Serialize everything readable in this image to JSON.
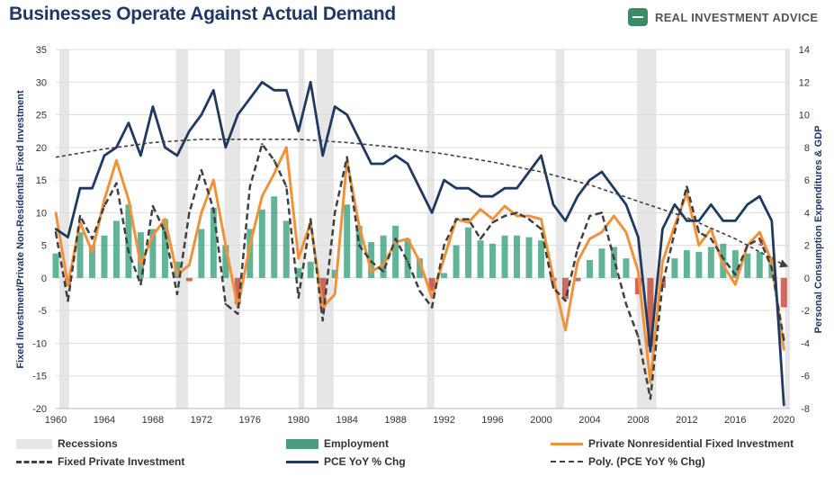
{
  "header": {
    "title": "Businesses Operate Against Actual Demand",
    "brand": "REAL INVESTMENT ADVICE"
  },
  "chart_data": {
    "type": "line",
    "title": "Businesses Operate Against Actual Demand",
    "ylabel_left": "Fixed Investment/Private Non-Residential Fixed Investment",
    "ylabel_right": "Personal Consumption Expenditures & GDP",
    "xlim": [
      1960,
      2020.5
    ],
    "ylim_left": [
      -20,
      35
    ],
    "ylim_right": [
      -8,
      14
    ],
    "x_ticks": [
      1960,
      1964,
      1968,
      1972,
      1976,
      1980,
      1984,
      1988,
      1992,
      1996,
      2000,
      2004,
      2008,
      2012,
      2016,
      2020
    ],
    "y_ticks_left": [
      -20,
      -15,
      -10,
      -5,
      0,
      5,
      10,
      15,
      20,
      25,
      30,
      35
    ],
    "y_ticks_right": [
      -8,
      -6,
      -4,
      -2,
      0,
      2,
      4,
      6,
      8,
      10,
      12,
      14
    ],
    "grid": true,
    "legend_position": "bottom",
    "colors": {
      "recessions": "#e6e6e6",
      "employment_positive": "#2e9a76",
      "employment_negative": "#c0392b",
      "private_nonres_fixed_inv": "#f0923a",
      "fixed_private_inv": "#404040",
      "pce": "#1f3a5f",
      "poly": "#404040"
    },
    "annotation": "3",
    "recessions": [
      [
        1960.3,
        1961.1
      ],
      [
        1969.9,
        1970.9
      ],
      [
        1973.9,
        1975.2
      ],
      [
        1980.0,
        1980.5
      ],
      [
        1981.5,
        1982.9
      ],
      [
        1990.6,
        1991.2
      ],
      [
        2001.2,
        2001.9
      ],
      [
        2007.9,
        2009.5
      ],
      [
        2020.1,
        2020.5
      ]
    ],
    "series": [
      {
        "name": "Employment",
        "axis": "right",
        "style": "bars",
        "x": [
          1960,
          1961,
          1962,
          1963,
          1964,
          1965,
          1966,
          1967,
          1968,
          1969,
          1970,
          1971,
          1972,
          1973,
          1974,
          1975,
          1976,
          1977,
          1978,
          1979,
          1980,
          1981,
          1982,
          1983,
          1984,
          1985,
          1986,
          1987,
          1988,
          1989,
          1990,
          1991,
          1992,
          1993,
          1994,
          1995,
          1996,
          1997,
          1998,
          1999,
          2000,
          2001,
          2002,
          2003,
          2004,
          2005,
          2006,
          2007,
          2008,
          2009,
          2010,
          2011,
          2012,
          2013,
          2014,
          2015,
          2016,
          2017,
          2018,
          2019,
          2020
        ],
        "values": [
          1.5,
          -0.5,
          2.8,
          2.0,
          2.6,
          3.5,
          4.5,
          2.8,
          3.0,
          3.6,
          1.0,
          -0.2,
          3.0,
          4.3,
          2.0,
          -1.6,
          3.0,
          4.2,
          5.0,
          3.5,
          0.6,
          1.0,
          -1.8,
          0.5,
          4.5,
          3.2,
          2.2,
          2.6,
          3.2,
          2.4,
          1.2,
          -0.8,
          0.3,
          2.0,
          3.1,
          2.3,
          2.1,
          2.6,
          2.6,
          2.5,
          2.3,
          -0.2,
          -1.3,
          -0.2,
          1.1,
          1.8,
          1.9,
          1.2,
          -1.0,
          -4.2,
          -0.6,
          1.2,
          1.7,
          1.6,
          1.9,
          2.1,
          1.7,
          1.5,
          1.6,
          1.3,
          -1.8
        ]
      },
      {
        "name": "Private Nonresidential Fixed Investment",
        "axis": "left",
        "x": [
          1960,
          1961,
          1962,
          1963,
          1964,
          1965,
          1966,
          1967,
          1968,
          1969,
          1970,
          1971,
          1972,
          1973,
          1974,
          1975,
          1976,
          1977,
          1978,
          1979,
          1980,
          1981,
          1982,
          1983,
          1984,
          1985,
          1986,
          1987,
          1988,
          1989,
          1990,
          1991,
          1992,
          1993,
          1994,
          1995,
          1996,
          1997,
          1998,
          1999,
          2000,
          2001,
          2002,
          2003,
          2004,
          2005,
          2006,
          2007,
          2008,
          2009,
          2010,
          2011,
          2012,
          2013,
          2014,
          2015,
          2016,
          2017,
          2018,
          2019,
          2020
        ],
        "values": [
          10.0,
          -1.0,
          8.5,
          4.0,
          12.0,
          18.0,
          12.0,
          2.0,
          6.5,
          9.0,
          0.5,
          2.0,
          10.0,
          15.0,
          5.0,
          -4.5,
          5.0,
          12.5,
          16.0,
          20.0,
          3.0,
          8.5,
          -4.5,
          -2.5,
          18.0,
          8.0,
          1.0,
          2.0,
          5.5,
          6.0,
          2.5,
          -3.0,
          3.0,
          9.0,
          8.5,
          10.5,
          9.0,
          11.0,
          9.5,
          9.5,
          9.0,
          0.0,
          -8.0,
          2.5,
          6.0,
          7.0,
          9.5,
          7.0,
          1.0,
          -16.0,
          2.5,
          8.0,
          13.0,
          5.0,
          7.5,
          2.0,
          -1.0,
          5.0,
          7.0,
          2.5,
          -11.0
        ]
      },
      {
        "name": "Fixed Private Investment",
        "axis": "left",
        "x": [
          1960,
          1961,
          1962,
          1963,
          1964,
          1965,
          1966,
          1967,
          1968,
          1969,
          1970,
          1971,
          1972,
          1973,
          1974,
          1975,
          1976,
          1977,
          1978,
          1979,
          1980,
          1981,
          1982,
          1983,
          1984,
          1985,
          1986,
          1987,
          1988,
          1989,
          1990,
          1991,
          1992,
          1993,
          1994,
          1995,
          1996,
          1997,
          1998,
          1999,
          2000,
          2001,
          2002,
          2003,
          2004,
          2005,
          2006,
          2007,
          2008,
          2009,
          2010,
          2011,
          2012,
          2013,
          2014,
          2015,
          2016,
          2017,
          2018,
          2019,
          2020
        ],
        "values": [
          7.0,
          -3.5,
          9.5,
          6.0,
          11.0,
          14.5,
          4.0,
          -1.0,
          11.0,
          7.0,
          -2.5,
          10.0,
          16.5,
          10.5,
          -4.0,
          -5.5,
          14.0,
          20.5,
          18.0,
          14.0,
          -3.0,
          9.0,
          -6.5,
          10.0,
          18.5,
          5.0,
          2.5,
          1.0,
          6.0,
          2.5,
          -2.0,
          -4.5,
          5.0,
          9.0,
          9.0,
          6.0,
          8.5,
          9.5,
          10.0,
          9.0,
          7.5,
          -1.5,
          -3.5,
          4.5,
          9.5,
          10.0,
          3.0,
          -4.0,
          -9.0,
          -18.5,
          -1.0,
          7.0,
          14.0,
          7.0,
          6.0,
          3.0,
          0.5,
          5.0,
          6.0,
          1.5,
          -9.5
        ]
      },
      {
        "name": "PCE YoY % Chg",
        "axis": "right",
        "x": [
          1960,
          1961,
          1962,
          1963,
          1964,
          1965,
          1966,
          1967,
          1968,
          1969,
          1970,
          1971,
          1972,
          1973,
          1974,
          1975,
          1976,
          1977,
          1978,
          1979,
          1980,
          1981,
          1982,
          1983,
          1984,
          1985,
          1986,
          1987,
          1988,
          1989,
          1990,
          1991,
          1992,
          1993,
          1994,
          1995,
          1996,
          1997,
          1998,
          1999,
          2000,
          2001,
          2002,
          2003,
          2004,
          2005,
          2006,
          2007,
          2008,
          2009,
          2010,
          2011,
          2012,
          2013,
          2014,
          2015,
          2016,
          2017,
          2018,
          2019,
          2020
        ],
        "values": [
          3.0,
          2.5,
          5.5,
          5.5,
          7.5,
          8.0,
          9.5,
          7.5,
          10.5,
          8.0,
          7.5,
          9.0,
          10.0,
          11.5,
          8.0,
          10.0,
          11.0,
          12.0,
          11.5,
          11.5,
          9.0,
          12.0,
          7.5,
          10.5,
          10.0,
          8.5,
          7.0,
          7.0,
          7.5,
          7.0,
          5.5,
          4.0,
          6.0,
          5.5,
          5.5,
          5.0,
          5.0,
          5.5,
          5.5,
          6.5,
          7.5,
          4.5,
          3.5,
          5.0,
          6.0,
          6.5,
          5.5,
          4.5,
          2.5,
          -4.5,
          3.0,
          4.5,
          3.5,
          3.5,
          4.5,
          3.5,
          3.5,
          4.5,
          5.0,
          3.5,
          -7.8
        ]
      },
      {
        "name": "Poly. (PCE YoY % Chg)",
        "axis": "right",
        "style": "dashed-trend",
        "x": [
          1960,
          1964,
          1968,
          1972,
          1976,
          1980,
          1984,
          1988,
          1992,
          1996,
          2000,
          2004,
          2008,
          2012,
          2016,
          2020
        ],
        "values": [
          7.4,
          7.9,
          8.3,
          8.5,
          8.5,
          8.5,
          8.3,
          8.0,
          7.6,
          7.1,
          6.5,
          5.7,
          4.7,
          3.7,
          2.4,
          0.8
        ]
      }
    ]
  }
}
